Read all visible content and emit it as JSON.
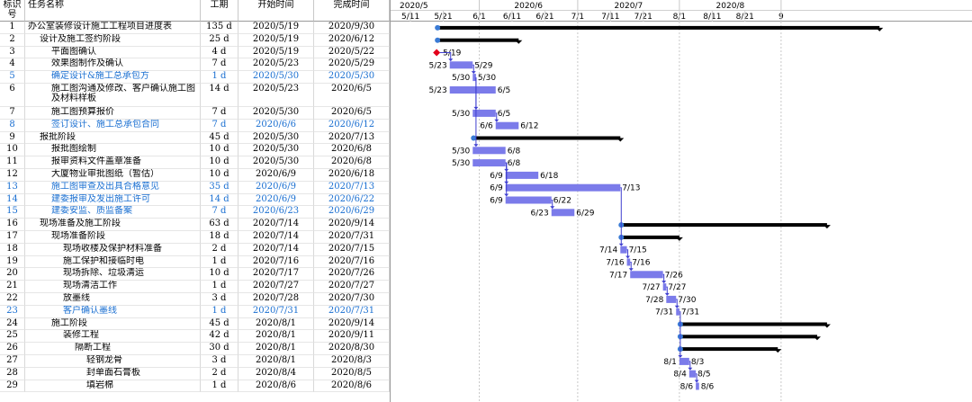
{
  "columns": {
    "id": "标识号",
    "name": "任务名称",
    "duration": "工期",
    "start": "开始时间",
    "finish": "完成时间"
  },
  "timescale": {
    "months": [
      "2020/5",
      "2020/6",
      "2020/7",
      "2020/8"
    ],
    "days": [
      "5/11",
      "5/21",
      "6/1",
      "6/11",
      "6/21",
      "7/1",
      "7/11",
      "7/21",
      "8/1",
      "8/11",
      "8/21",
      "9"
    ]
  },
  "tasks": [
    {
      "id": "1",
      "name": "办公室装修设计施工工程项目进度表",
      "duration": "135 d",
      "start": "2020/5/19",
      "finish": "2020/9/30",
      "level": 0,
      "summary": true,
      "bar_start": "2020-05-19",
      "bar_end": "2020-09-30",
      "color": "#000"
    },
    {
      "id": "2",
      "name": "设计及施工签约阶段",
      "duration": "25 d",
      "start": "2020/5/19",
      "finish": "2020/6/12",
      "level": 1,
      "summary": true,
      "bar_start": "2020-05-19",
      "bar_end": "2020-06-12",
      "color": "#000"
    },
    {
      "id": "3",
      "name": "平面图确认",
      "duration": "4 d",
      "start": "2020/5/19",
      "finish": "2020/5/22",
      "level": 2,
      "milestone": true,
      "bar_start": "2020-05-19",
      "bar_end": "2020-05-19",
      "start_label": "",
      "end_label": "5/19",
      "color": "#000"
    },
    {
      "id": "4",
      "name": "效果图制作及确认",
      "duration": "7 d",
      "start": "2020/5/23",
      "finish": "2020/5/29",
      "level": 2,
      "bar_start": "2020-05-23",
      "bar_end": "2020-05-29",
      "start_label": "5/23",
      "end_label": "5/29",
      "color": "#000"
    },
    {
      "id": "5",
      "name": "确定设计&施工总承包方",
      "duration": "1 d",
      "start": "2020/5/30",
      "finish": "2020/5/30",
      "level": 2,
      "bar_start": "2020-05-30",
      "bar_end": "2020-05-30",
      "start_label": "5/30",
      "end_label": "5/30",
      "color": "#1a6fd1"
    },
    {
      "id": "6",
      "name": "施工图沟通及修改、客户确认施工图及材料样板",
      "duration": "14 d",
      "start": "2020/5/23",
      "finish": "2020/6/5",
      "level": 2,
      "tall": true,
      "bar_start": "2020-05-23",
      "bar_end": "2020-06-05",
      "start_label": "5/23",
      "end_label": "6/5",
      "color": "#000"
    },
    {
      "id": "7",
      "name": "施工图预算报价",
      "duration": "7 d",
      "start": "2020/5/30",
      "finish": "2020/6/5",
      "level": 2,
      "bar_start": "2020-05-30",
      "bar_end": "2020-06-05",
      "start_label": "5/30",
      "end_label": "6/5",
      "color": "#000"
    },
    {
      "id": "8",
      "name": "签订设计、施工总承包合同",
      "duration": "7 d",
      "start": "2020/6/6",
      "finish": "2020/6/12",
      "level": 2,
      "bar_start": "2020-06-06",
      "bar_end": "2020-06-12",
      "start_label": "6/6",
      "end_label": "6/12",
      "color": "#1a6fd1"
    },
    {
      "id": "9",
      "name": "报批阶段",
      "duration": "45 d",
      "start": "2020/5/30",
      "finish": "2020/7/13",
      "level": 1,
      "summary": true,
      "bar_start": "2020-05-30",
      "bar_end": "2020-07-13",
      "color": "#000"
    },
    {
      "id": "10",
      "name": "报批图绘制",
      "duration": "10 d",
      "start": "2020/5/30",
      "finish": "2020/6/8",
      "level": 2,
      "bar_start": "2020-05-30",
      "bar_end": "2020-06-08",
      "start_label": "5/30",
      "end_label": "6/8",
      "color": "#000"
    },
    {
      "id": "11",
      "name": "报审资料文件盖章准备",
      "duration": "10 d",
      "start": "2020/5/30",
      "finish": "2020/6/8",
      "level": 2,
      "bar_start": "2020-05-30",
      "bar_end": "2020-06-08",
      "start_label": "5/30",
      "end_label": "6/8",
      "color": "#000"
    },
    {
      "id": "12",
      "name": "大厦物业审批图纸（暂估）",
      "duration": "10 d",
      "start": "2020/6/9",
      "finish": "2020/6/18",
      "level": 2,
      "bar_start": "2020-06-09",
      "bar_end": "2020-06-18",
      "start_label": "6/9",
      "end_label": "6/18",
      "color": "#000"
    },
    {
      "id": "13",
      "name": "施工图审查及出具合格意见",
      "duration": "35 d",
      "start": "2020/6/9",
      "finish": "2020/7/13",
      "level": 2,
      "bar_start": "2020-06-09",
      "bar_end": "2020-07-13",
      "start_label": "6/9",
      "end_label": "7/13",
      "color": "#1a6fd1"
    },
    {
      "id": "14",
      "name": "建委报审及发出施工许可",
      "duration": "14 d",
      "start": "2020/6/9",
      "finish": "2020/6/22",
      "level": 2,
      "bar_start": "2020-06-09",
      "bar_end": "2020-06-22",
      "start_label": "6/9",
      "end_label": "6/22",
      "color": "#1a6fd1"
    },
    {
      "id": "15",
      "name": "建委安监、质监备案",
      "duration": "7 d",
      "start": "2020/6/23",
      "finish": "2020/6/29",
      "level": 2,
      "bar_start": "2020-06-23",
      "bar_end": "2020-06-29",
      "start_label": "6/23",
      "end_label": "6/29",
      "color": "#1a6fd1"
    },
    {
      "id": "16",
      "name": "现场准备及施工阶段",
      "duration": "63 d",
      "start": "2020/7/14",
      "finish": "2020/9/14",
      "level": 1,
      "summary": true,
      "bar_start": "2020-07-14",
      "bar_end": "2020-09-14",
      "color": "#000"
    },
    {
      "id": "17",
      "name": "现场准备阶段",
      "duration": "18 d",
      "start": "2020/7/14",
      "finish": "2020/7/31",
      "level": 2,
      "summary": true,
      "bar_start": "2020-07-14",
      "bar_end": "2020-07-31",
      "color": "#000"
    },
    {
      "id": "18",
      "name": "现场收楼及保护材料准备",
      "duration": "2 d",
      "start": "2020/7/14",
      "finish": "2020/7/15",
      "level": 3,
      "bar_start": "2020-07-14",
      "bar_end": "2020-07-15",
      "start_label": "7/14",
      "end_label": "7/15",
      "color": "#000"
    },
    {
      "id": "19",
      "name": "施工保护和接临时电",
      "duration": "1 d",
      "start": "2020/7/16",
      "finish": "2020/7/16",
      "level": 3,
      "bar_start": "2020-07-16",
      "bar_end": "2020-07-16",
      "start_label": "7/16",
      "end_label": "7/16",
      "color": "#000"
    },
    {
      "id": "20",
      "name": "现场拆除、垃圾清运",
      "duration": "10 d",
      "start": "2020/7/17",
      "finish": "2020/7/26",
      "level": 3,
      "bar_start": "2020-07-17",
      "bar_end": "2020-07-26",
      "start_label": "7/17",
      "end_label": "7/26",
      "color": "#000"
    },
    {
      "id": "21",
      "name": "现场清洁工作",
      "duration": "1 d",
      "start": "2020/7/27",
      "finish": "2020/7/27",
      "level": 3,
      "bar_start": "2020-07-27",
      "bar_end": "2020-07-27",
      "start_label": "7/27",
      "end_label": "7/27",
      "color": "#000"
    },
    {
      "id": "22",
      "name": "放墨线",
      "duration": "3 d",
      "start": "2020/7/28",
      "finish": "2020/7/30",
      "level": 3,
      "bar_start": "2020-07-28",
      "bar_end": "2020-07-30",
      "start_label": "7/28",
      "end_label": "7/30",
      "color": "#000"
    },
    {
      "id": "23",
      "name": "客户确认墨线",
      "duration": "1 d",
      "start": "2020/7/31",
      "finish": "2020/7/31",
      "level": 3,
      "bar_start": "2020-07-31",
      "bar_end": "2020-07-31",
      "start_label": "7/31",
      "end_label": "7/31",
      "color": "#1a6fd1"
    },
    {
      "id": "24",
      "name": "施工阶段",
      "duration": "45 d",
      "start": "2020/8/1",
      "finish": "2020/9/14",
      "level": 2,
      "summary": true,
      "bar_start": "2020-08-01",
      "bar_end": "2020-09-14",
      "color": "#000"
    },
    {
      "id": "25",
      "name": "装修工程",
      "duration": "42 d",
      "start": "2020/8/1",
      "finish": "2020/9/11",
      "level": 3,
      "summary": true,
      "bar_start": "2020-08-01",
      "bar_end": "2020-09-11",
      "color": "#000"
    },
    {
      "id": "26",
      "name": "隔断工程",
      "duration": "30 d",
      "start": "2020/8/1",
      "finish": "2020/8/30",
      "level": 4,
      "summary": true,
      "bar_start": "2020-08-01",
      "bar_end": "2020-08-30",
      "color": "#000"
    },
    {
      "id": "27",
      "name": "轻钢龙骨",
      "duration": "3 d",
      "start": "2020/8/1",
      "finish": "2020/8/3",
      "level": 5,
      "bar_start": "2020-08-01",
      "bar_end": "2020-08-03",
      "start_label": "8/1",
      "end_label": "8/3",
      "color": "#000"
    },
    {
      "id": "28",
      "name": "封单面石膏板",
      "duration": "2 d",
      "start": "2020/8/4",
      "finish": "2020/8/5",
      "level": 5,
      "bar_start": "2020-08-04",
      "bar_end": "2020-08-05",
      "start_label": "8/4",
      "end_label": "8/5",
      "color": "#000"
    },
    {
      "id": "29",
      "name": "填岩棉",
      "duration": "1 d",
      "start": "2020/8/6",
      "finish": "2020/8/6",
      "level": 5,
      "bar_start": "2020-08-06",
      "bar_end": "2020-08-06",
      "start_label": "8/6",
      "end_label": "8/6",
      "color": "#000"
    }
  ],
  "colors": {
    "bar": "#7b7bea",
    "summary": "#000000",
    "milestone": "#e3001b",
    "link": "#3f3fd0",
    "blue_text": "#1a6fd1"
  }
}
